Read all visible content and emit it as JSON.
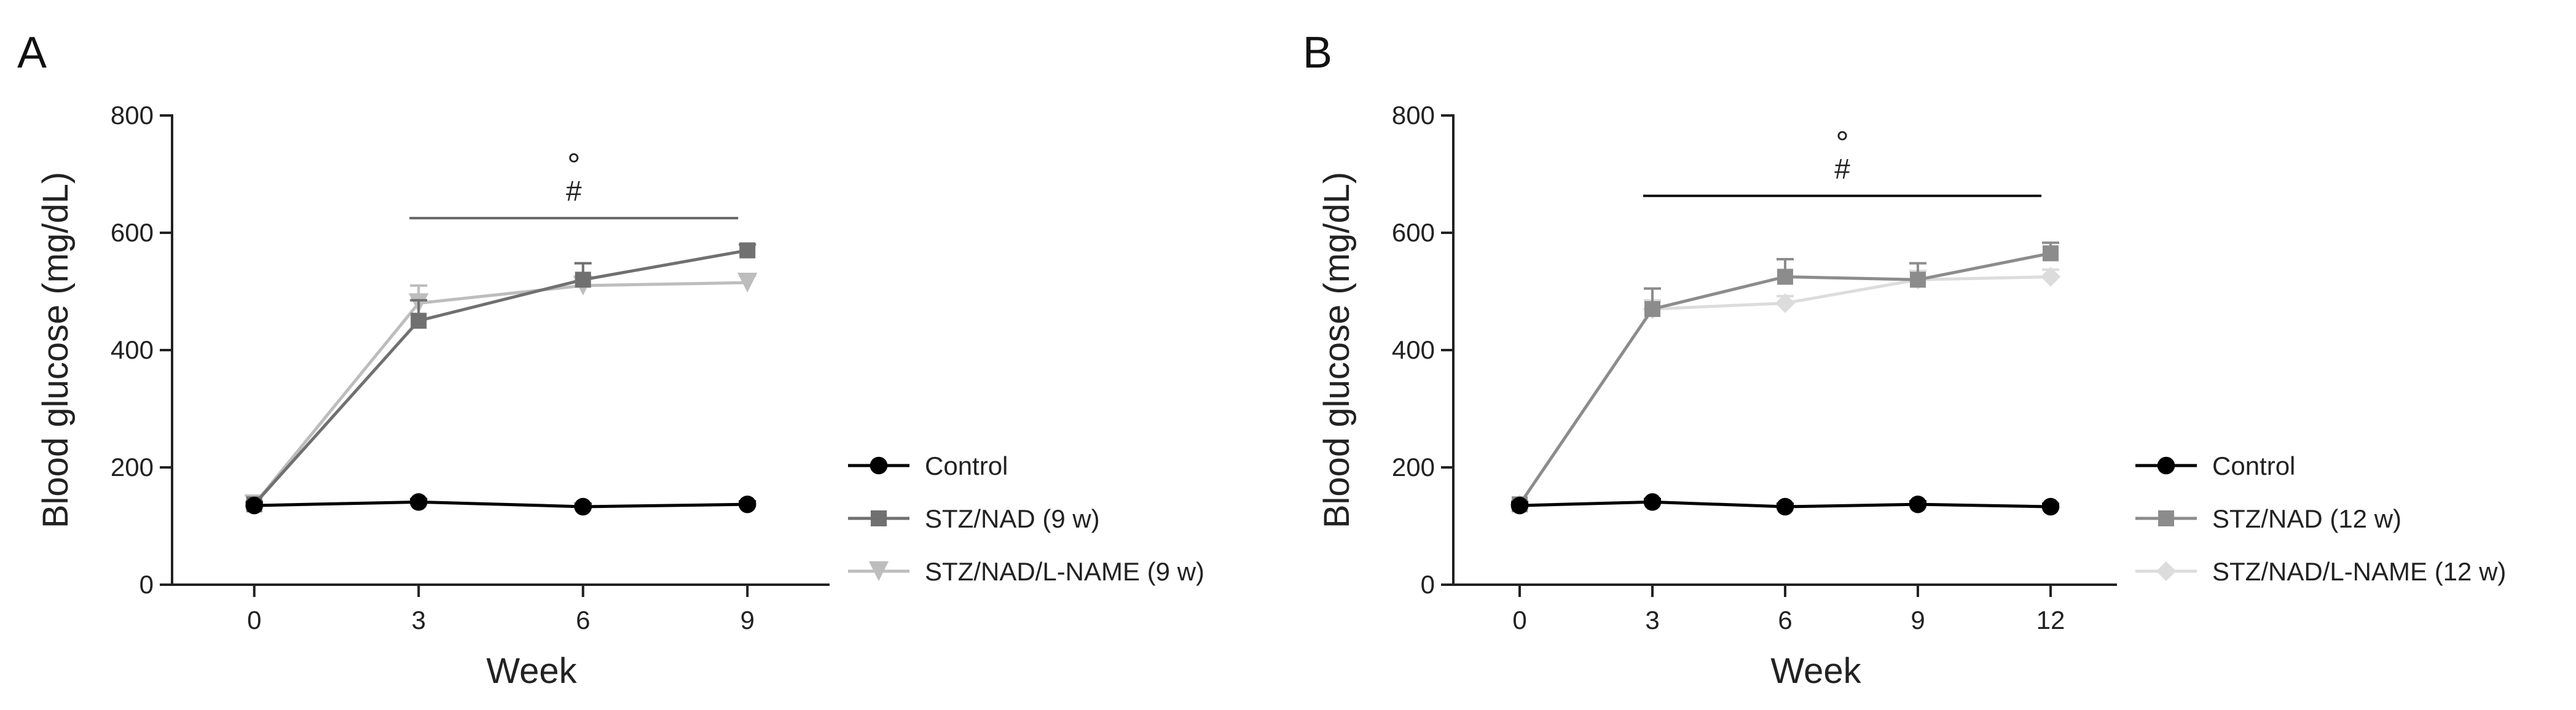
{
  "chart_data": [
    {
      "type": "line",
      "panel_label": "A",
      "xlabel": "Week",
      "ylabel": "Blood glucose (mg/dL)",
      "ylim": [
        0,
        800
      ],
      "yticks": [
        0,
        200,
        400,
        600,
        800
      ],
      "xlim": [
        -1.5,
        10.5
      ],
      "xticks": [
        0,
        3,
        6,
        9
      ],
      "legend_position": "right",
      "annotations": {
        "circle": "°",
        "hash": "#",
        "bar_from": 3,
        "bar_to": 9,
        "bar_y": 625
      },
      "series": [
        {
          "name": "Control",
          "marker": "circle",
          "color": "#000000",
          "x": [
            0,
            3,
            6,
            9
          ],
          "y": [
            135,
            141,
            133,
            137
          ],
          "err": [
            5,
            5,
            5,
            5
          ]
        },
        {
          "name": "STZ/NAD (9 w)",
          "marker": "square",
          "color": "#707070",
          "x": [
            0,
            3,
            6,
            9
          ],
          "y": [
            137,
            450,
            520,
            570
          ],
          "err": [
            5,
            35,
            28,
            10
          ]
        },
        {
          "name": "STZ/NAD/L-NAME (9 w)",
          "marker": "triangle-down",
          "color": "#bdbdbd",
          "x": [
            0,
            3,
            6,
            9
          ],
          "y": [
            137,
            480,
            510,
            515
          ],
          "err": [
            5,
            30,
            15,
            12
          ]
        }
      ]
    },
    {
      "type": "line",
      "panel_label": "B",
      "xlabel": "Week",
      "ylabel": "Blood glucose (mg/dL)",
      "ylim": [
        0,
        800
      ],
      "yticks": [
        0,
        200,
        400,
        600,
        800
      ],
      "xlim": [
        -1.5,
        13.5
      ],
      "xticks": [
        0,
        3,
        6,
        9,
        12
      ],
      "legend_position": "right",
      "annotations": {
        "circle": "°",
        "hash": "#",
        "bar_from": 3,
        "bar_to": 12,
        "bar_y": 663
      },
      "series": [
        {
          "name": "Control",
          "marker": "circle",
          "color": "#000000",
          "x": [
            0,
            3,
            6,
            9,
            12
          ],
          "y": [
            135,
            141,
            133,
            137,
            133
          ],
          "err": [
            5,
            5,
            5,
            5,
            5
          ]
        },
        {
          "name": "STZ/NAD (12 w)",
          "marker": "square",
          "color": "#8c8c8c",
          "x": [
            0,
            3,
            6,
            9,
            12
          ],
          "y": [
            137,
            470,
            525,
            520,
            565
          ],
          "err": [
            5,
            35,
            30,
            28,
            18
          ]
        },
        {
          "name": "STZ/NAD/L-NAME (12 w)",
          "marker": "diamond",
          "color": "#dcdcdc",
          "x": [
            0,
            3,
            6,
            9,
            12
          ],
          "y": [
            137,
            470,
            480,
            520,
            525
          ],
          "err": [
            5,
            15,
            12,
            15,
            12
          ]
        }
      ]
    }
  ]
}
